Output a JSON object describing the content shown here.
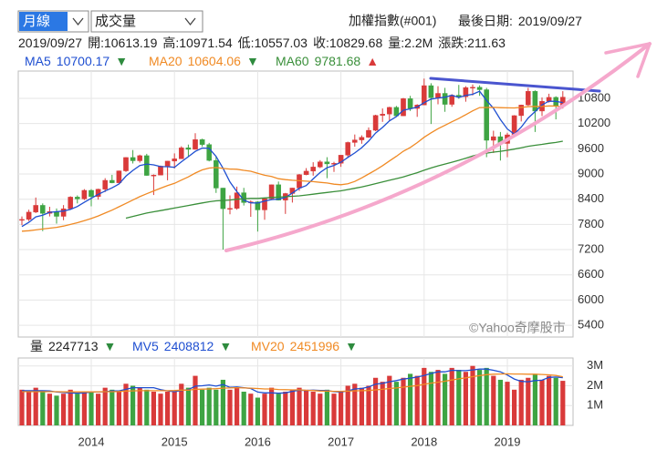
{
  "header": {
    "period": "月線",
    "indicator": "成交量",
    "index_name": "加權指數(#001)",
    "last_date_label": "最後日期:",
    "date": "2019/09/27"
  },
  "info": {
    "open": "開:",
    "high": "高:",
    "low": "低:",
    "close": "收:",
    "volume": "量:",
    "volume_text": "2.2M",
    "change": "漲跌:",
    "change_value": 211.63
  },
  "chart_data": [
    {
      "type": "candlestick",
      "up_color": "#d93a3a",
      "down_color": "#3ea443",
      "grid": true,
      "watermark": "©Yahoo奇摩股市",
      "ylim": [
        5120,
        11450
      ],
      "yticks": [
        5400,
        6000,
        6600,
        7200,
        7800,
        8400,
        9000,
        9600,
        10200,
        10800
      ],
      "open": [
        7900,
        7919,
        8093,
        8254,
        8062,
        8107,
        7992,
        8173,
        8450,
        8407,
        8611,
        8462,
        8639,
        8849,
        8791,
        9075,
        9393,
        9315,
        9436,
        8966,
        8974,
        9187,
        9307,
        9361,
        9622,
        9586,
        9820,
        9701,
        9323,
        8665,
        8174,
        8181,
        8554,
        8320,
        8338,
        8145,
        8411,
        8744,
        8377,
        8535,
        8666,
        8984,
        9068,
        9166,
        9290,
        9240,
        9254,
        9448,
        9750,
        9811,
        9872,
        10040,
        10395,
        10427,
        10586,
        10384,
        10793,
        10560,
        10643,
        11103,
        10815,
        10919,
        10657,
        10875,
        10837,
        11057,
        11064,
        11006,
        9802,
        9888,
        9727,
        9932,
        10389,
        10641,
        10967,
        10498,
        10731,
        10824,
        10613.19
      ],
      "high": [
        7990,
        8150,
        8440,
        8300,
        8220,
        8180,
        8260,
        8470,
        8490,
        8640,
        8640,
        8650,
        8900,
        8980,
        9080,
        9400,
        9570,
        9460,
        9480,
        8990,
        9200,
        9310,
        9490,
        9660,
        9700,
        9970,
        9840,
        9740,
        9420,
        8670,
        8490,
        8700,
        8670,
        8370,
        8350,
        8420,
        8750,
        8820,
        8550,
        8670,
        9000,
        9140,
        9280,
        9330,
        9400,
        9290,
        9450,
        9770,
        9940,
        9920,
        10110,
        10410,
        10560,
        10600,
        10620,
        10810,
        10860,
        10660,
        11270,
        11160,
        11090,
        11050,
        10900,
        11120,
        11090,
        11130,
        11110,
        11050,
        10030,
        10000,
        9980,
        10400,
        10650,
        11050,
        10990,
        10820,
        10910,
        10850,
        10971.54
      ],
      "low": [
        7780,
        7880,
        8070,
        7640,
        7990,
        7820,
        7900,
        8160,
        8300,
        8380,
        8230,
        8390,
        8570,
        8780,
        8780,
        9050,
        9250,
        9270,
        8960,
        8500,
        8970,
        8850,
        9130,
        9360,
        9420,
        9580,
        9650,
        9300,
        8550,
        7200,
        8040,
        8150,
        8250,
        7980,
        7630,
        7910,
        8380,
        8370,
        8050,
        8320,
        8600,
        8970,
        8960,
        9140,
        8900,
        9050,
        9170,
        9400,
        9650,
        9720,
        9860,
        10020,
        10240,
        10270,
        10370,
        10380,
        10500,
        10360,
        10640,
        10190,
        10660,
        10480,
        10600,
        10790,
        10720,
        10870,
        10860,
        9400,
        9500,
        9320,
        9400,
        9920,
        10250,
        10620,
        10000,
        10380,
        10700,
        10300,
        10557.03
      ],
      "close": [
        7919,
        8093,
        8254,
        8062,
        8107,
        7992,
        8173,
        8450,
        8407,
        8611,
        8462,
        8639,
        8849,
        8791,
        9075,
        9393,
        9315,
        9436,
        8966,
        8974,
        9187,
        9307,
        9361,
        9622,
        9586,
        9820,
        9701,
        9323,
        8665,
        8174,
        8181,
        8554,
        8320,
        8338,
        8145,
        8411,
        8744,
        8377,
        8535,
        8666,
        8984,
        9068,
        9166,
        9290,
        9240,
        9254,
        9448,
        9750,
        9811,
        9872,
        10040,
        10395,
        10427,
        10586,
        10384,
        10793,
        10560,
        10643,
        11103,
        10815,
        10919,
        10657,
        10875,
        10837,
        11057,
        11064,
        11006,
        9802,
        9888,
        9727,
        9932,
        10389,
        10641,
        10967,
        10498,
        10731,
        10824,
        10618.05,
        10829.68
      ],
      "series": [
        {
          "name": "MA5",
          "color": "#1f4fd1",
          "arrow": "▼",
          "arrow_color": "#2e8b3e",
          "values": [
            7750,
            7850,
            7980,
            8020,
            8087,
            8102,
            8118,
            8157,
            8226,
            8327,
            8421,
            8514,
            8594,
            8670,
            8763,
            8949,
            9085,
            9202,
            9237,
            9217,
            9176,
            9174,
            9159,
            9290,
            9413,
            9539,
            9618,
            9610,
            9419,
            9137,
            8809,
            8579,
            8379,
            8313,
            8308,
            8354,
            8392,
            8403,
            8442,
            8547,
            8661,
            8726,
            8884,
            9035,
            9150,
            9204,
            9280,
            9396,
            9501,
            9627,
            9784,
            9974,
            10109,
            10264,
            10366,
            10517,
            10550,
            10593,
            10697,
            10783,
            10808,
            10827,
            10874,
            10821,
            10869,
            10898,
            10968,
            10753,
            10563,
            10297,
            10071,
            9948,
            10115,
            10331,
            10485,
            10645,
            10732,
            10728,
            10700.17
          ]
        },
        {
          "name": "MA20",
          "color": "#f08a24",
          "arrow": "▼",
          "arrow_color": "#2e8b3e",
          "values": [
            7640,
            7650,
            7670,
            7690,
            7710,
            7730,
            7760,
            7800,
            7840,
            7890,
            7940,
            8000,
            8070,
            8140,
            8220,
            8300,
            8380,
            8460,
            8530,
            8598,
            8662,
            8723,
            8778,
            8856,
            8930,
            9021,
            9098,
            9141,
            9154,
            9132,
            9118,
            9114,
            9088,
            9065,
            9018,
            8969,
            8941,
            8888,
            8866,
            8851,
            8841,
            8829,
            8819,
            8802,
            8785,
            8757,
            8744,
            8766,
            8823,
            8908,
            9001,
            9093,
            9198,
            9310,
            9422,
            9542,
            9632,
            9746,
            9874,
            9981,
            10078,
            10158,
            10243,
            10320,
            10411,
            10502,
            10580,
            10582,
            10586,
            10579,
            10574,
            10573,
            10584,
            10603,
            10609,
            10606,
            10619,
            10618,
            10604.06
          ]
        },
        {
          "name": "MA60",
          "color": "#3a8f3a",
          "arrow": "▲",
          "arrow_color": "#d93a3a",
          "values": [
            null,
            null,
            null,
            null,
            null,
            null,
            null,
            null,
            null,
            null,
            null,
            null,
            null,
            null,
            null,
            7950,
            7990,
            8030,
            8070,
            8100,
            8130,
            8160,
            8190,
            8220,
            8250,
            8280,
            8310,
            8340,
            8360,
            8370,
            8380,
            8400,
            8410,
            8420,
            8420,
            8430,
            8440,
            8450,
            8460,
            8470,
            8480,
            8500,
            8520,
            8540,
            8560,
            8580,
            8600,
            8630,
            8660,
            8690,
            8730,
            8770,
            8810,
            8850,
            8890,
            8930,
            8980,
            9030,
            9090,
            9144,
            9194,
            9236,
            9280,
            9326,
            9375,
            9427,
            9474,
            9496,
            9521,
            9540,
            9564,
            9593,
            9623,
            9659,
            9683,
            9705,
            9731,
            9750,
            9781.68
          ]
        }
      ]
    },
    {
      "type": "bar",
      "grid": true,
      "categories": [
        null,
        null,
        null,
        null,
        null,
        null,
        null,
        null,
        null,
        null,
        "2014",
        null,
        null,
        null,
        null,
        null,
        null,
        null,
        null,
        null,
        null,
        null,
        "2015",
        null,
        null,
        null,
        null,
        null,
        null,
        null,
        null,
        null,
        null,
        null,
        "2016",
        null,
        null,
        null,
        null,
        null,
        null,
        null,
        null,
        null,
        null,
        null,
        "2017",
        null,
        null,
        null,
        null,
        null,
        null,
        null,
        null,
        null,
        null,
        null,
        "2018",
        null,
        null,
        null,
        null,
        null,
        null,
        null,
        null,
        null,
        null,
        null,
        "2019",
        null,
        null,
        null,
        null,
        null,
        null,
        null,
        null
      ],
      "ylim": [
        0,
        3400000
      ],
      "yticks": [
        {
          "value": 1000000,
          "label": "1M"
        },
        {
          "value": 2000000,
          "label": "2M"
        },
        {
          "value": 3000000,
          "label": "3M"
        }
      ],
      "series": [
        {
          "name": "量",
          "arrow": "▼",
          "arrow_color": "#2e8b3e",
          "values": [
            1800000,
            1700000,
            1900000,
            1700000,
            1600000,
            1500000,
            1600000,
            1800000,
            1600000,
            1700000,
            1700000,
            1600000,
            1900000,
            1800000,
            1700000,
            2100000,
            2000000,
            1900000,
            1800000,
            1700000,
            1600000,
            1700000,
            1700000,
            2100000,
            1900000,
            2500000,
            1800000,
            1900000,
            1800000,
            2300000,
            1800000,
            1900000,
            1700000,
            1600000,
            1400000,
            1600000,
            1900000,
            1600000,
            1700000,
            1800000,
            1900000,
            1800000,
            1700000,
            1600000,
            1800000,
            1600000,
            1700000,
            2000000,
            2100000,
            1900000,
            2000000,
            2400000,
            2200000,
            2500000,
            2200000,
            2400000,
            2600000,
            2500000,
            2900000,
            2700000,
            2800000,
            2600000,
            2900000,
            2800000,
            2700000,
            3000000,
            2800000,
            2900000,
            2500000,
            2300000,
            2200000,
            1800000,
            2300000,
            2400000,
            2600000,
            2300000,
            2500000,
            2400000,
            2247713
          ]
        },
        {
          "name": "MV5",
          "color": "#1f4fd1",
          "arrow": "▼",
          "arrow_color": "#2e8b3e",
          "values": [
            1750000,
            1750000,
            1750000,
            1750000,
            1740000,
            1680000,
            1660000,
            1640000,
            1620000,
            1640000,
            1680000,
            1680000,
            1700000,
            1740000,
            1740000,
            1820000,
            1900000,
            1900000,
            1900000,
            1900000,
            1800000,
            1740000,
            1700000,
            1760000,
            1800000,
            1980000,
            2000000,
            2040000,
            1980000,
            2060000,
            1920000,
            1940000,
            1900000,
            1860000,
            1680000,
            1640000,
            1640000,
            1620000,
            1640000,
            1720000,
            1780000,
            1760000,
            1780000,
            1760000,
            1760000,
            1700000,
            1680000,
            1740000,
            1840000,
            1860000,
            1940000,
            2080000,
            2120000,
            2200000,
            2260000,
            2340000,
            2380000,
            2440000,
            2520000,
            2620000,
            2700000,
            2700000,
            2780000,
            2760000,
            2760000,
            2800000,
            2840000,
            2840000,
            2780000,
            2700000,
            2540000,
            2340000,
            2220000,
            2200000,
            2260000,
            2280000,
            2420000,
            2440000,
            2408812
          ]
        },
        {
          "name": "MV20",
          "color": "#f08a24",
          "arrow": "▼",
          "arrow_color": "#2e8b3e",
          "values": [
            1700000,
            1700000,
            1700000,
            1700000,
            1700000,
            1700000,
            1690000,
            1690000,
            1690000,
            1690000,
            1690000,
            1690000,
            1700000,
            1700000,
            1710000,
            1730000,
            1740000,
            1750000,
            1750000,
            1750000,
            1750000,
            1750000,
            1760000,
            1780000,
            1780000,
            1820000,
            1830000,
            1840000,
            1850000,
            1880000,
            1890000,
            1900000,
            1890000,
            1880000,
            1860000,
            1840000,
            1840000,
            1810000,
            1800000,
            1790000,
            1790000,
            1770000,
            1760000,
            1730000,
            1730000,
            1720000,
            1720000,
            1730000,
            1740000,
            1750000,
            1760000,
            1790000,
            1820000,
            1860000,
            1890000,
            1930000,
            1970000,
            2010000,
            2070000,
            2130000,
            2180000,
            2230000,
            2290000,
            2350000,
            2400000,
            2460000,
            2510000,
            2560000,
            2580000,
            2590000,
            2600000,
            2590000,
            2590000,
            2580000,
            2580000,
            2570000,
            2550000,
            2520000,
            2451996
          ]
        }
      ]
    }
  ]
}
